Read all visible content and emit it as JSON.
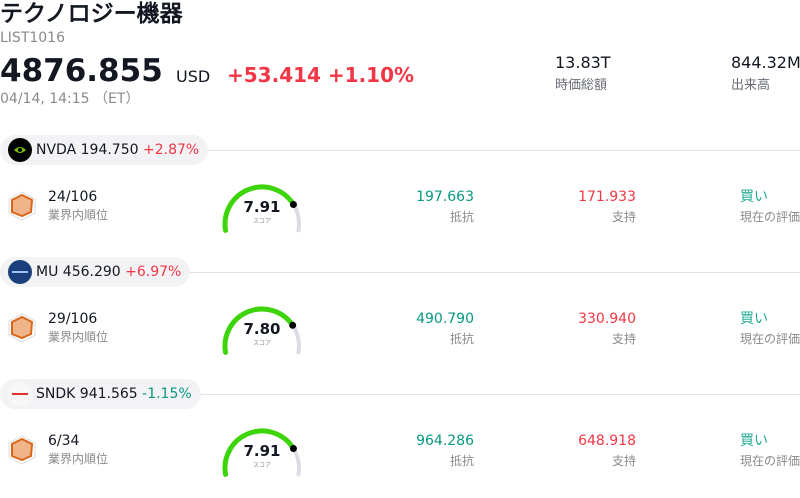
{
  "header": {
    "title": "テクノロジー機器",
    "code": "LIST1016",
    "price": "4876.855",
    "currency": "USD",
    "change": "+53.414",
    "change_pct": "+1.10%",
    "time": "04/14, 14:15 （ET）",
    "market_cap": "13.83T",
    "market_cap_label": "時価総額",
    "volume": "844.32M",
    "volume_label": "出来高"
  },
  "labels": {
    "rank": "業界内順位",
    "score": "スコア",
    "resistance": "抵抗",
    "support": "支持",
    "rating": "現在の評価"
  },
  "colors": {
    "up": "#089981",
    "down": "#f23645",
    "gauge": "#3dd40a",
    "gauge_track": "#dcdce6",
    "buy": "#22ab94",
    "hex": "#d9661a"
  },
  "stocks": [
    {
      "ticker": "NVDA",
      "price": "194.750",
      "change": "+2.87%",
      "direction": "down-red",
      "rank": "24/106",
      "score": "7.91",
      "score_value": 7.91,
      "resistance": "197.663",
      "support": "171.933",
      "rating": "買い",
      "logo": "nvidia-logo"
    },
    {
      "ticker": "MU",
      "price": "456.290",
      "change": "+6.97%",
      "direction": "down-red",
      "rank": "29/106",
      "score": "7.80",
      "score_value": 7.8,
      "resistance": "490.790",
      "support": "330.940",
      "rating": "買い",
      "logo": "micron-logo",
      "logo_text": "micron"
    },
    {
      "ticker": "SNDK",
      "price": "941.565",
      "change": "-1.15%",
      "direction": "up-green",
      "rank": "6/34",
      "score": "7.91",
      "score_value": 7.91,
      "resistance": "964.286",
      "support": "648.918",
      "rating": "買い",
      "logo": "sandisk-logo",
      "logo_text": "SANDISK"
    }
  ]
}
